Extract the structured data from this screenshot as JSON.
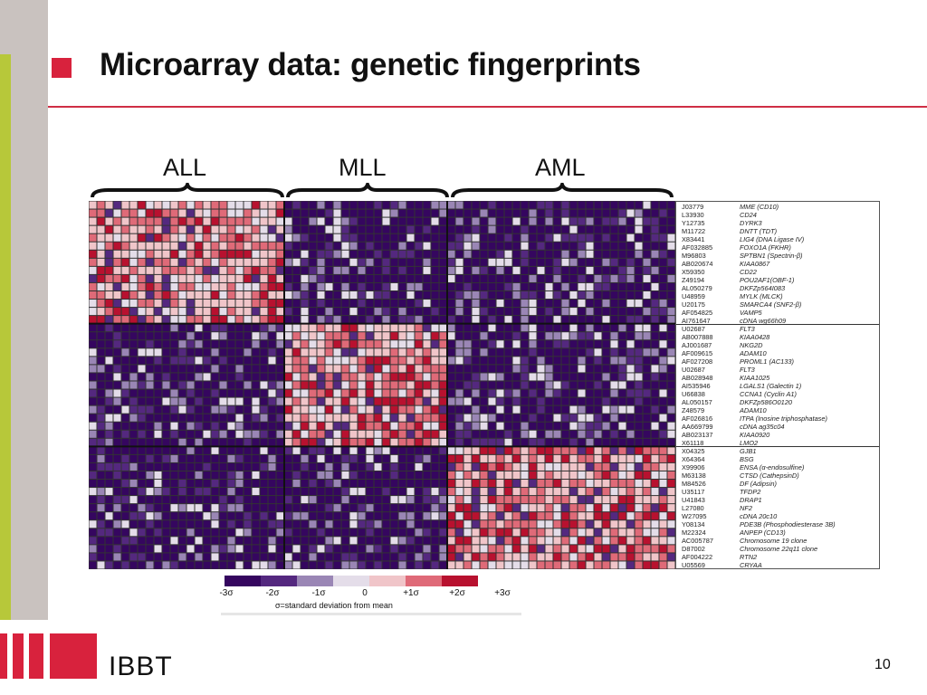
{
  "slide": {
    "title": "Microarray data: genetic fingerprints",
    "page_number": "10",
    "logo_text": "IBBT",
    "colors": {
      "accent_red": "#d8223d",
      "side_gray": "#c9c2bf",
      "side_green": "#b7c83a"
    }
  },
  "figure": {
    "groups": [
      "ALL",
      "MLL",
      "AML"
    ],
    "genes": [
      {
        "id": "J03779",
        "name": "MME (CD10)"
      },
      {
        "id": "L33930",
        "name": "CD24"
      },
      {
        "id": "Y12735",
        "name": "DYRK3"
      },
      {
        "id": "M11722",
        "name": "DNTT (TDT)"
      },
      {
        "id": "X83441",
        "name": "LIG4 (DNA Ligase IV)"
      },
      {
        "id": "AF032885",
        "name": "FOXO1A (FKHR)"
      },
      {
        "id": "M96803",
        "name": "SPTBN1 (Spectrin-β)"
      },
      {
        "id": "AB020674",
        "name": "KIAA0867"
      },
      {
        "id": "X59350",
        "name": "CD22"
      },
      {
        "id": "Z49194",
        "name": "POU2AF1(OBF-1)"
      },
      {
        "id": "AL050279",
        "name": "DKFZp564I083"
      },
      {
        "id": "U48959",
        "name": "MYLK (MLCK)"
      },
      {
        "id": "U20175",
        "name": "SMARCA4 (SNF2-β)"
      },
      {
        "id": "AF054825",
        "name": "VAMP5"
      },
      {
        "id": "AI761647",
        "name": "cDNA wg66h09"
      },
      {
        "id": "U02687",
        "name": "FLT3"
      },
      {
        "id": "AB007888",
        "name": "KIAA0428"
      },
      {
        "id": "AJ001687",
        "name": "NKG2D"
      },
      {
        "id": "AF009615",
        "name": "ADAM10"
      },
      {
        "id": "AF027208",
        "name": "PROML1 (AC133)"
      },
      {
        "id": "U02687",
        "name": "FLT3"
      },
      {
        "id": "AB028948",
        "name": "KIAA1025"
      },
      {
        "id": "AI535946",
        "name": "LGALS1 (Galectin 1)"
      },
      {
        "id": "U66838",
        "name": "CCNA1 (Cyclin A1)"
      },
      {
        "id": "AL050157",
        "name": "DKFZp586O0120"
      },
      {
        "id": "Z48579",
        "name": "ADAM10"
      },
      {
        "id": "AF026816",
        "name": "ITPA (Inosine triphosphatase)"
      },
      {
        "id": "AA669799",
        "name": "cDNA ag35c04"
      },
      {
        "id": "AB023137",
        "name": "KIAA0920"
      },
      {
        "id": "X61118",
        "name": "LMO2"
      },
      {
        "id": "X04325",
        "name": "GJB1"
      },
      {
        "id": "X64364",
        "name": "BSG"
      },
      {
        "id": "X99906",
        "name": "ENSA (α-endosulfine)"
      },
      {
        "id": "M63138",
        "name": "CTSD (CathepsinD)"
      },
      {
        "id": "M84526",
        "name": "DF (Adipsin)"
      },
      {
        "id": "U35117",
        "name": "TFDP2"
      },
      {
        "id": "U41843",
        "name": "DRAP1"
      },
      {
        "id": "L27080",
        "name": "NF2"
      },
      {
        "id": "W27095",
        "name": "cDNA 20c10"
      },
      {
        "id": "Y08134",
        "name": "PDE3B (Phosphodiesterase 3B)"
      },
      {
        "id": "M22324",
        "name": "ANPEP (CD13)"
      },
      {
        "id": "AC005787",
        "name": "Chromosome 19 clone"
      },
      {
        "id": "D87002",
        "name": "Chromosome 22q11 clone"
      },
      {
        "id": "AF004222",
        "name": "RTN2"
      },
      {
        "id": "U05569",
        "name": "CRYAA"
      }
    ],
    "legend": {
      "ticks": [
        "-3σ",
        "-2σ",
        "-1σ",
        "0",
        "+1σ",
        "+2σ",
        "+3σ"
      ],
      "caption": "σ=standard deviation from mean",
      "colors": [
        "#35065f",
        "#54287f",
        "#9a86b5",
        "#e4dde9",
        "#f0c5c9",
        "#df6a78",
        "#b8112f"
      ]
    }
  }
}
